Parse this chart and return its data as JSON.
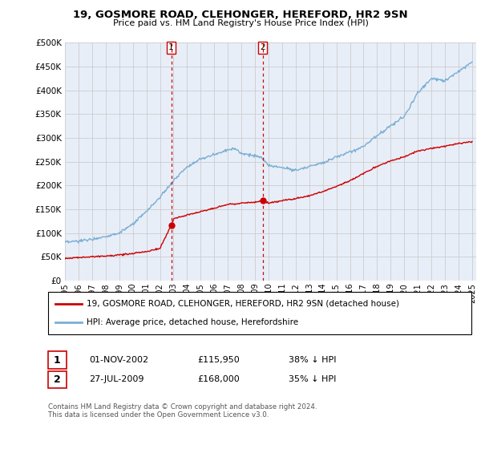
{
  "title": "19, GOSMORE ROAD, CLEHONGER, HEREFORD, HR2 9SN",
  "subtitle": "Price paid vs. HM Land Registry's House Price Index (HPI)",
  "legend_line1": "19, GOSMORE ROAD, CLEHONGER, HEREFORD, HR2 9SN (detached house)",
  "legend_line2": "HPI: Average price, detached house, Herefordshire",
  "transaction1_date": "01-NOV-2002",
  "transaction1_price": "£115,950",
  "transaction1_hpi": "38% ↓ HPI",
  "transaction2_date": "27-JUL-2009",
  "transaction2_price": "£168,000",
  "transaction2_hpi": "35% ↓ HPI",
  "footnote": "Contains HM Land Registry data © Crown copyright and database right 2024.\nThis data is licensed under the Open Government Licence v3.0.",
  "hpi_color": "#7bafd4",
  "price_color": "#cc0000",
  "vline_color": "#cc0000",
  "grid_color": "#cccccc",
  "background_color": "#e8eef8",
  "ylim": [
    0,
    500000
  ],
  "yticks": [
    0,
    50000,
    100000,
    150000,
    200000,
    250000,
    300000,
    350000,
    400000,
    450000,
    500000
  ],
  "transaction1_x": 2002.83,
  "transaction2_x": 2009.56,
  "transaction1_price_val": 115950,
  "transaction2_price_val": 168000,
  "hpi_key_x": [
    1995,
    1996,
    1997,
    1998,
    1999,
    2000,
    2001,
    2002,
    2003,
    2004,
    2005,
    2006,
    2007,
    2007.5,
    2008,
    2009,
    2009.5,
    2010,
    2011,
    2012,
    2013,
    2014,
    2015,
    2016,
    2017,
    2018,
    2019,
    2020,
    2021,
    2022,
    2023,
    2024,
    2025
  ],
  "hpi_key_y": [
    80000,
    83000,
    87000,
    93000,
    100000,
    118000,
    145000,
    175000,
    210000,
    240000,
    255000,
    265000,
    275000,
    278000,
    268000,
    262000,
    258000,
    242000,
    238000,
    232000,
    240000,
    248000,
    260000,
    270000,
    282000,
    305000,
    325000,
    345000,
    395000,
    425000,
    420000,
    440000,
    460000
  ],
  "price_key_x": [
    1995,
    1996,
    1997,
    1998,
    1999,
    2000,
    2001,
    2002,
    2002.83,
    2003,
    2004,
    2005,
    2006,
    2007,
    2008,
    2009,
    2009.56,
    2010,
    2011,
    2012,
    2013,
    2014,
    2015,
    2016,
    2017,
    2018,
    2019,
    2020,
    2021,
    2022,
    2023,
    2024,
    2025
  ],
  "price_key_y": [
    47000,
    48500,
    50000,
    52000,
    54000,
    57000,
    61000,
    68000,
    115950,
    130000,
    138000,
    145000,
    152000,
    160000,
    163000,
    165000,
    168000,
    163000,
    168000,
    172000,
    178000,
    187000,
    198000,
    210000,
    225000,
    240000,
    252000,
    260000,
    272000,
    278000,
    282000,
    288000,
    292000
  ]
}
